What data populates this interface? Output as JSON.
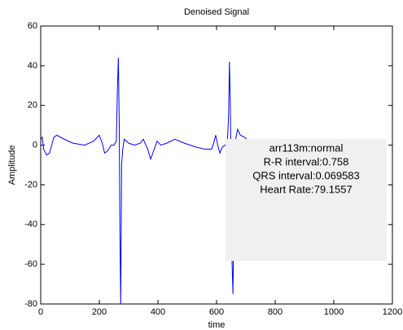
{
  "chart_data": {
    "type": "line",
    "title": "Denoised Signal",
    "x_label": "time",
    "y_label": "Amplitude",
    "x": [
      0,
      5,
      10,
      20,
      30,
      45,
      55,
      80,
      110,
      150,
      180,
      200,
      210,
      218,
      228,
      240,
      250,
      258,
      262,
      265,
      268,
      270,
      273,
      276,
      280,
      285,
      300,
      320,
      340,
      350,
      365,
      375,
      385,
      397,
      410,
      430,
      458,
      490,
      530,
      560,
      583,
      590,
      597,
      604,
      611,
      620,
      630,
      637,
      641,
      644,
      647,
      650,
      653,
      656,
      660,
      665,
      672,
      681,
      695,
      710,
      725,
      740
    ],
    "values": [
      3,
      4,
      -2,
      -5,
      -4,
      4,
      5,
      3,
      1,
      0,
      2,
      5,
      1,
      -4,
      -3,
      0,
      0,
      2,
      30,
      44,
      10,
      -40,
      -80,
      -10,
      -2,
      3,
      1,
      0,
      1,
      3,
      -2,
      -7,
      -3,
      2,
      0,
      1,
      3,
      1,
      -1,
      -2,
      -2,
      1,
      5,
      0,
      -4,
      -1,
      0,
      2,
      15,
      42,
      20,
      -20,
      -60,
      -75,
      -20,
      3,
      8,
      5,
      4,
      2,
      1,
      0
    ],
    "color": "#0000ff",
    "xlim": [
      0,
      1200
    ],
    "xticks": [
      0,
      200,
      400,
      600,
      800,
      1000,
      1200
    ],
    "ylim": [
      -80,
      60
    ],
    "yticks": [
      -80,
      -60,
      -40,
      -20,
      0,
      20,
      40,
      60
    ],
    "grid": false,
    "annotation_lines": [
      "arr113m:normal",
      "R-R interval:0.758",
      "QRS interval:0.069583",
      "Heart Rate:79.1557"
    ]
  }
}
